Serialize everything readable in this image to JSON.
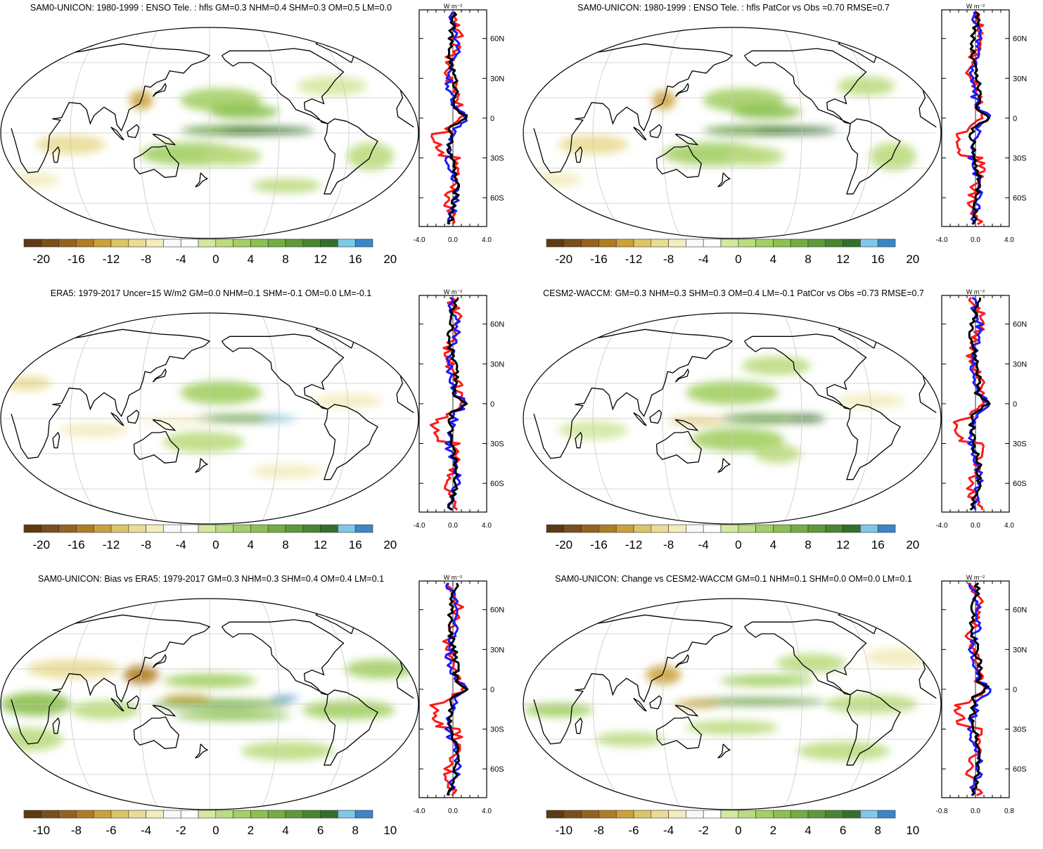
{
  "colors": {
    "palette": [
      "#5c3a14",
      "#7a4f1e",
      "#95621f",
      "#b07d25",
      "#c9a23a",
      "#dcc567",
      "#e9dc94",
      "#f2ecbe",
      "#f8f8f8",
      "#ffffff",
      "#d4e8a0",
      "#bcdc81",
      "#a3cf64",
      "#8cc04f",
      "#74ae43",
      "#5e9a39",
      "#4a8532",
      "#35702b",
      "#7ec8e8",
      "#3b86c8"
    ],
    "profile_model": "#ff1a1a",
    "profile_obs": "#1a1aff",
    "profile_ref": "#000000"
  },
  "panels": [
    {
      "id": "p1",
      "title": "SAM0-UNICON: 1980-1999 : ENSO Tele. : hfls GM=0.3 NHM=0.4 SHM=0.3 OM=0.5 LM=0.0",
      "colorbar_labels": [
        "-20",
        "-16",
        "-12",
        "-8",
        "-4",
        "0",
        "4",
        "8",
        "12",
        "16",
        "20"
      ],
      "profile": {
        "units": "W m⁻²",
        "x_ticks": [
          "-4.0",
          "0.0",
          "4.0"
        ],
        "y_ticks": [
          "60N",
          "30N",
          "0",
          "30S",
          "60S"
        ],
        "xlim": [
          -4,
          4
        ]
      }
    },
    {
      "id": "p2",
      "title": "SAM0-UNICON: 1980-1999 : ENSO Tele. : hfls PatCor vs Obs =0.70 RMSE=0.7",
      "colorbar_labels": [
        "-20",
        "-16",
        "-12",
        "-8",
        "-4",
        "0",
        "4",
        "8",
        "12",
        "16",
        "20"
      ],
      "profile": {
        "units": "W m⁻²",
        "x_ticks": [
          "-4.0",
          "0.0",
          "4.0"
        ],
        "y_ticks": [
          "60N",
          "30N",
          "0",
          "30S",
          "60S"
        ],
        "xlim": [
          -4,
          4
        ]
      }
    },
    {
      "id": "p3",
      "title": "ERA5: 1979-2017 Uncer=15 W/m2 GM=0.0 NHM=0.1 SHM=-0.1 OM=0.0 LM=-0.1",
      "colorbar_labels": [
        "-20",
        "-16",
        "-12",
        "-8",
        "-4",
        "0",
        "4",
        "8",
        "12",
        "16",
        "20"
      ],
      "profile": {
        "units": "W m⁻²",
        "x_ticks": [
          "-4.0",
          "0.0",
          "4.0"
        ],
        "y_ticks": [
          "60N",
          "30N",
          "0",
          "30S",
          "60S"
        ],
        "xlim": [
          -4,
          4
        ]
      }
    },
    {
      "id": "p4",
      "title": "CESM2-WACCM: GM=0.3 NHM=0.3 SHM=0.3 OM=0.4 LM=-0.1 PatCor vs Obs =0.73 RMSE=0.7",
      "colorbar_labels": [
        "-20",
        "-16",
        "-12",
        "-8",
        "-4",
        "0",
        "4",
        "8",
        "12",
        "16",
        "20"
      ],
      "profile": {
        "units": "W m⁻²",
        "x_ticks": [
          "-4.0",
          "0.0",
          "4.0"
        ],
        "y_ticks": [
          "60N",
          "30N",
          "0",
          "30S",
          "60S"
        ],
        "xlim": [
          -4,
          4
        ]
      }
    },
    {
      "id": "p5",
      "title": "SAM0-UNICON: Bias vs ERA5: 1979-2017 GM=0.3 NHM=0.3 SHM=0.4 OM=0.4 LM=0.1",
      "colorbar_labels": [
        "-10",
        "-8",
        "-6",
        "-4",
        "-2",
        "0",
        "2",
        "4",
        "6",
        "8",
        "10"
      ],
      "profile": {
        "units": "W m⁻²",
        "x_ticks": [
          "-4.0",
          "0.0",
          "4.0"
        ],
        "y_ticks": [
          "60N",
          "30N",
          "0",
          "30S",
          "60S"
        ],
        "xlim": [
          -4,
          4
        ]
      }
    },
    {
      "id": "p6",
      "title": "SAM0-UNICON: Change vs CESM2-WACCM GM=0.1 NHM=0.1 SHM=0.0 OM=0.0 LM=0.1",
      "colorbar_labels": [
        "-10",
        "-8",
        "-6",
        "-4",
        "-2",
        "0",
        "2",
        "4",
        "6",
        "8",
        "10"
      ],
      "profile": {
        "units": "W m⁻²",
        "x_ticks": [
          "-0.8",
          "0.0",
          "0.8"
        ],
        "y_ticks": [
          "60N",
          "30N",
          "0",
          "30S",
          "60S"
        ],
        "xlim": [
          -1.2,
          1.2
        ]
      }
    }
  ]
}
